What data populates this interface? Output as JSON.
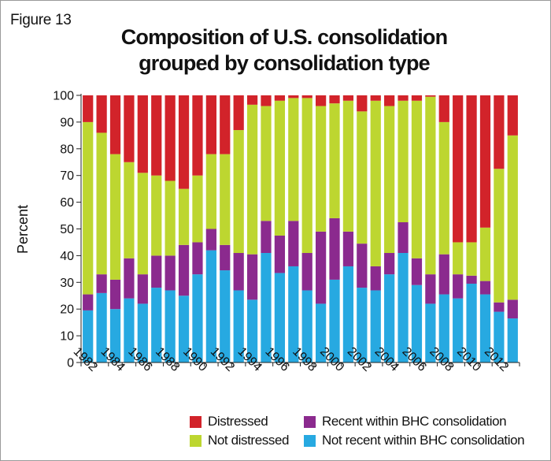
{
  "figure_label": "Figure 13",
  "chart_data": {
    "type": "bar",
    "stacked": true,
    "title": [
      "Composition of U.S. consolidation",
      "grouped by consolidation type"
    ],
    "ylabel": "Percent",
    "ylim": [
      0,
      100
    ],
    "yticks": [
      0,
      10,
      20,
      30,
      40,
      50,
      60,
      70,
      80,
      90,
      100
    ],
    "categories": [
      1982,
      1983,
      1984,
      1985,
      1986,
      1987,
      1988,
      1989,
      1990,
      1991,
      1992,
      1993,
      1994,
      1995,
      1996,
      1997,
      1998,
      1999,
      2000,
      2001,
      2002,
      2003,
      2004,
      2005,
      2006,
      2007,
      2008,
      2009,
      2010,
      2011,
      2012,
      2013
    ],
    "xtick_labels": [
      "1982",
      "1984",
      "1986",
      "1988",
      "1990",
      "1992",
      "1994",
      "1996",
      "1998",
      "2000",
      "2002",
      "2004",
      "2006",
      "2008",
      "2010",
      "2012"
    ],
    "legend_position": "bottom",
    "series": [
      {
        "name": "Not recent within BHC consolidation",
        "color": "#27a9e1",
        "values": [
          19.5,
          26,
          20,
          24,
          22,
          28,
          27,
          25,
          33,
          42,
          34.5,
          27,
          23.5,
          41,
          33.5,
          36,
          27,
          22,
          31,
          36,
          28,
          27,
          33,
          41,
          29,
          22,
          25.5,
          24,
          29.5,
          25.5,
          19,
          16.5
        ]
      },
      {
        "name": "Recent within BHC consolidation",
        "color": "#8b2a8e",
        "values": [
          6,
          7,
          11,
          15,
          11,
          12,
          13,
          19,
          12,
          8,
          9.5,
          14,
          17,
          12,
          14,
          17,
          14,
          27,
          23,
          13,
          16.5,
          9,
          8,
          11.5,
          10,
          11,
          15,
          9,
          3,
          5,
          3.5,
          7
        ]
      },
      {
        "name": "Not distressed",
        "color": "#bdd630",
        "values": [
          64.5,
          53,
          47,
          36,
          38,
          30,
          28,
          21,
          25,
          28,
          34,
          46,
          56,
          43,
          50.5,
          46,
          58,
          47,
          43,
          49,
          49.5,
          62,
          55,
          45.5,
          59,
          66.5,
          49.5,
          12,
          12.5,
          20,
          50,
          61.5
        ]
      },
      {
        "name": "Distressed",
        "color": "#d2232a",
        "values": [
          10,
          14,
          22,
          25,
          29,
          30,
          32,
          35,
          30,
          22,
          22,
          13,
          3.5,
          4,
          2,
          1,
          1,
          4,
          3,
          2,
          6,
          2,
          4,
          2,
          2,
          0.5,
          10,
          55,
          55,
          49.5,
          27.5,
          15
        ]
      }
    ]
  },
  "legend": {
    "items": [
      {
        "label": "Distressed",
        "color": "#d2232a"
      },
      {
        "label": "Recent within BHC consolidation",
        "color": "#8b2a8e"
      },
      {
        "label": "Not distressed",
        "color": "#bdd630"
      },
      {
        "label": "Not recent within BHC consolidation",
        "color": "#27a9e1"
      }
    ]
  }
}
